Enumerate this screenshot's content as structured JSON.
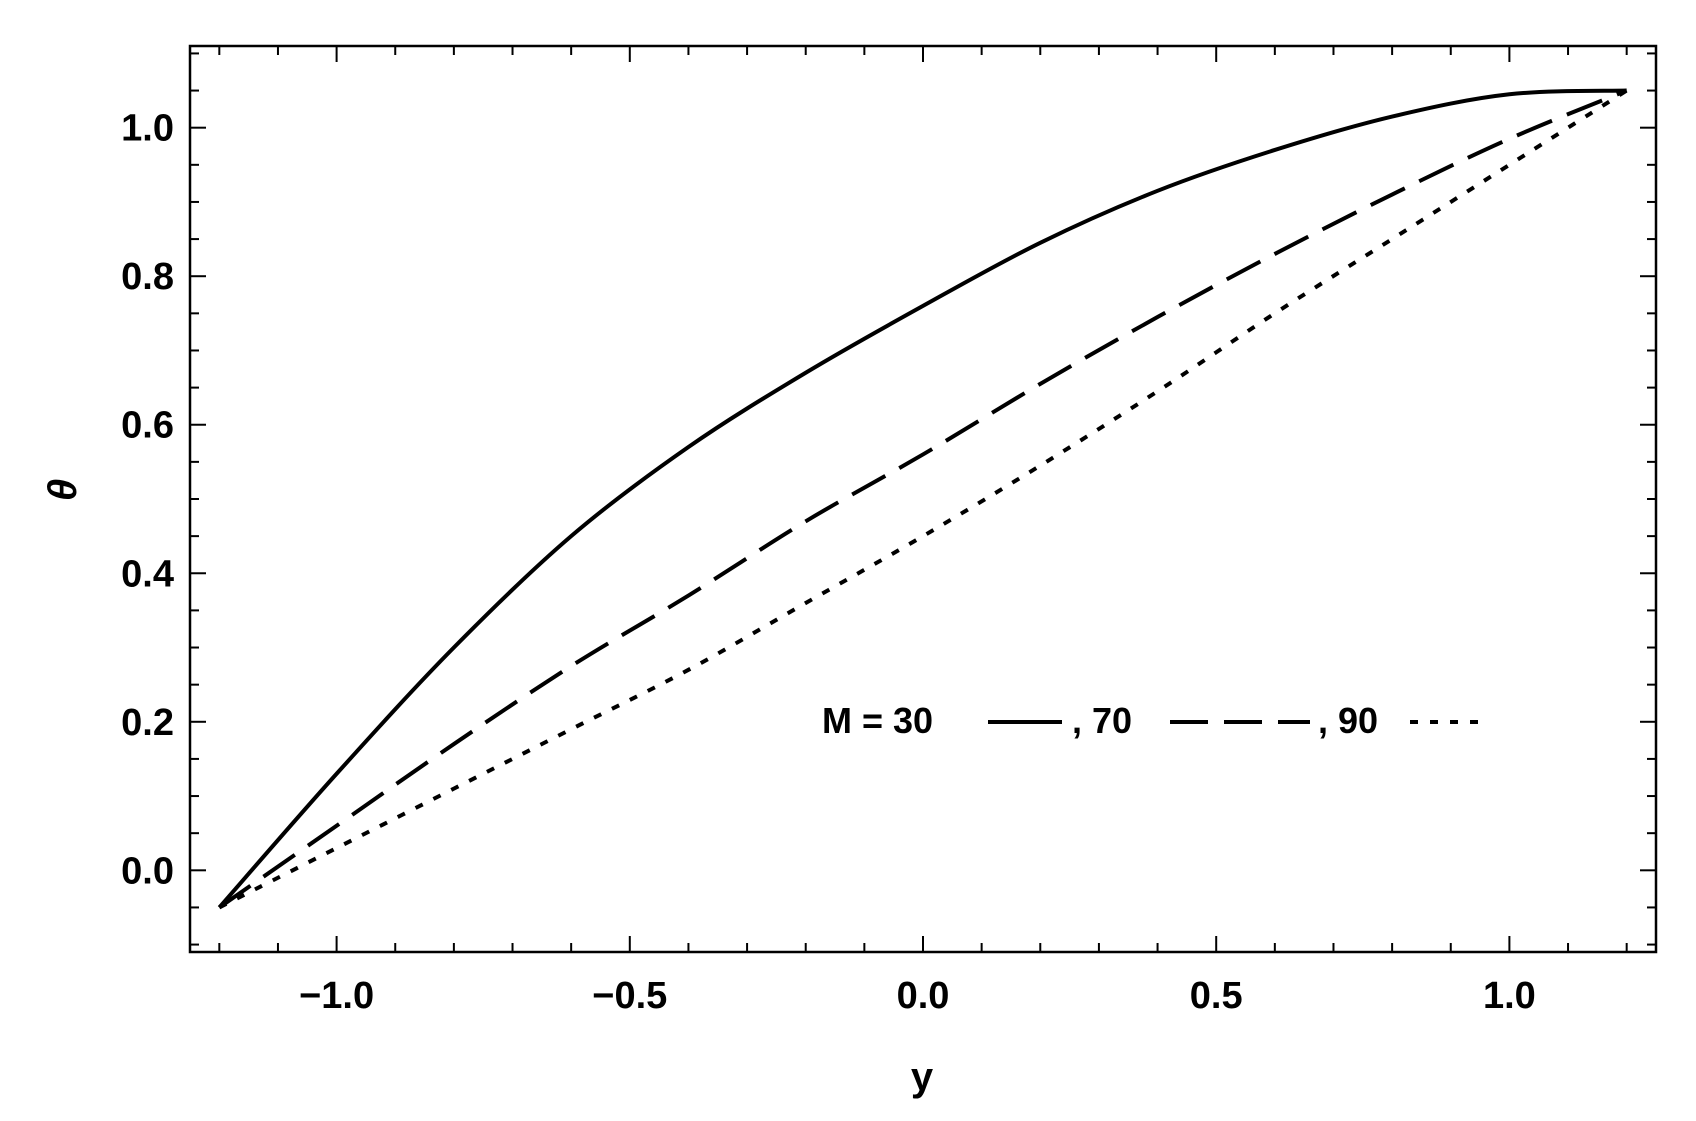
{
  "chart_data": {
    "type": "line",
    "title": "",
    "xlabel": "y",
    "ylabel": "θ",
    "xlim": [
      -1.25,
      1.25
    ],
    "ylim": [
      -0.11,
      1.11
    ],
    "xticks": [
      -1.0,
      -0.5,
      0.0,
      0.5,
      1.0
    ],
    "xtick_labels": [
      "−1.0",
      "−0.5",
      "0.0",
      "0.5",
      "1.0"
    ],
    "yticks": [
      0.0,
      0.2,
      0.4,
      0.6,
      0.8,
      1.0
    ],
    "ytick_labels": [
      "0.0",
      "0.2",
      "0.4",
      "0.6",
      "0.8",
      "1.0"
    ],
    "grid": false,
    "legend_text": {
      "prefix": "M = 30",
      "sep1": ", 70",
      "sep2": ", 90"
    },
    "legend_position": "center-right",
    "series": [
      {
        "label": "30",
        "style": "solid",
        "color": "#000000",
        "x": [
          -1.2,
          -1.0,
          -0.8,
          -0.6,
          -0.4,
          -0.2,
          0.0,
          0.2,
          0.4,
          0.6,
          0.8,
          1.0,
          1.2
        ],
        "y": [
          -0.05,
          0.13,
          0.3,
          0.45,
          0.57,
          0.67,
          0.76,
          0.845,
          0.915,
          0.97,
          1.015,
          1.045,
          1.05
        ]
      },
      {
        "label": "70",
        "style": "dashed",
        "color": "#000000",
        "x": [
          -1.2,
          -1.0,
          -0.8,
          -0.6,
          -0.4,
          -0.2,
          0.0,
          0.2,
          0.4,
          0.6,
          0.8,
          1.0,
          1.2
        ],
        "y": [
          -0.05,
          0.06,
          0.17,
          0.275,
          0.37,
          0.47,
          0.56,
          0.655,
          0.745,
          0.83,
          0.91,
          0.985,
          1.05
        ]
      },
      {
        "label": "90",
        "style": "dotted",
        "color": "#000000",
        "x": [
          -1.2,
          -1.0,
          -0.8,
          -0.6,
          -0.4,
          -0.2,
          0.0,
          0.2,
          0.4,
          0.6,
          0.8,
          1.0,
          1.2
        ],
        "y": [
          -0.05,
          0.03,
          0.11,
          0.19,
          0.27,
          0.36,
          0.45,
          0.545,
          0.645,
          0.75,
          0.85,
          0.95,
          1.05
        ]
      }
    ]
  }
}
